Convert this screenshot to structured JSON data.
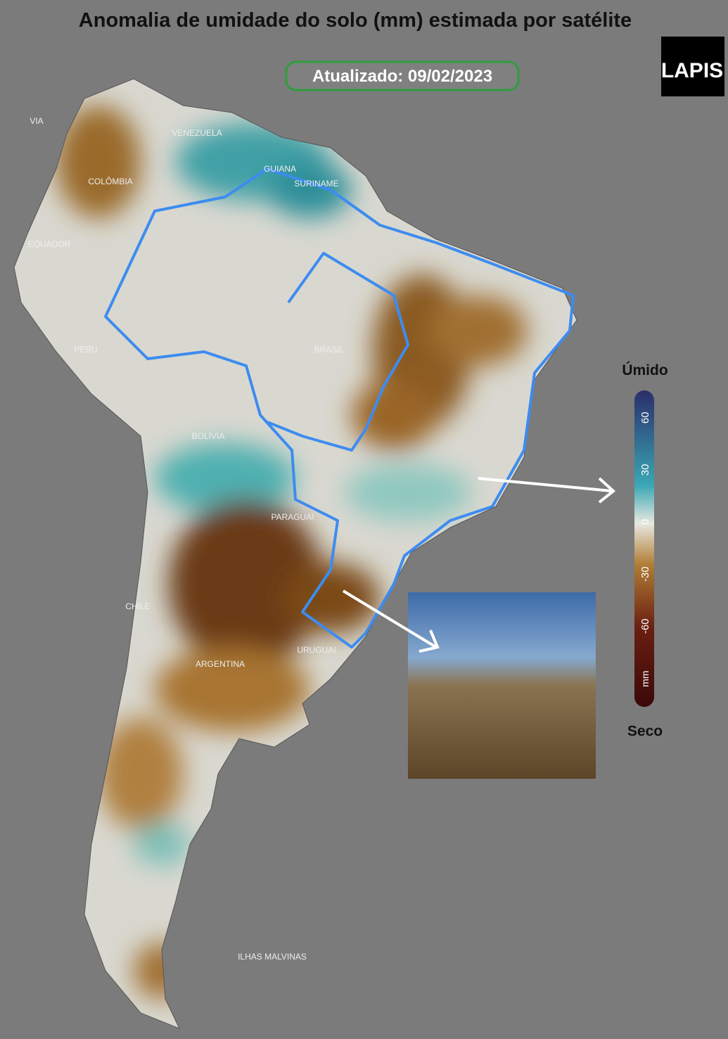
{
  "header": {
    "title": "Anomalia de umidade do solo (mm) estimada por satélite",
    "updated": "Atualizado: 09/02/2023",
    "logo": "LAPIS"
  },
  "map": {
    "labels": [
      "VIA",
      "VENEZUELA",
      "COLÔMBIA",
      "GUIANA",
      "SURINAME",
      "EQUADOR",
      "PERU",
      "BRASIL",
      "BOLÍVIA",
      "PARAGUAI",
      "CHILE",
      "ARGENTINA",
      "URUGUAI",
      "ILHAS MALVINAS"
    ]
  },
  "colorbar": {
    "top_label": "Úmido",
    "bottom_label": "Seco",
    "ticks": [
      60,
      30,
      0,
      -30,
      -60
    ],
    "unit": "mm"
  }
}
